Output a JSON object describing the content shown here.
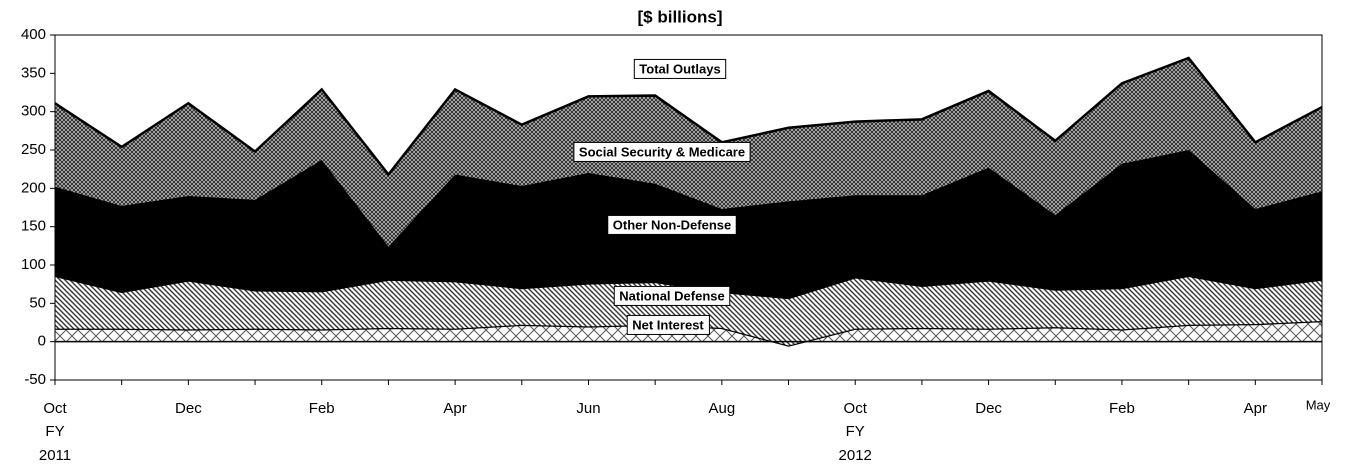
{
  "chart_data": {
    "type": "stacked-area",
    "title": "[$ billions]",
    "categories": [
      "Oct",
      null,
      "Dec",
      null,
      "Feb",
      null,
      "Apr",
      null,
      "Jun",
      null,
      "Aug",
      null,
      "Oct",
      null,
      "Dec",
      null,
      "Feb",
      null,
      "Apr",
      "May"
    ],
    "fiscal_years": [
      [
        "FY",
        "2011"
      ],
      null,
      null,
      null,
      null,
      null,
      null,
      null,
      null,
      null,
      null,
      null,
      [
        "FY",
        "2012"
      ],
      null,
      null,
      null,
      null,
      null,
      null,
      null
    ],
    "series": [
      {
        "name": "Net Interest",
        "pattern": "crosshatch",
        "color": "#555555",
        "values": [
          17,
          17,
          16,
          17,
          16,
          18,
          17,
          22,
          20,
          22,
          18,
          -5,
          17,
          18,
          17,
          19,
          16,
          22,
          23,
          27
        ]
      },
      {
        "name": "National Defense",
        "pattern": "diagonal",
        "color": "#333333",
        "values": [
          69,
          48,
          64,
          50,
          50,
          63,
          62,
          48,
          56,
          56,
          47,
          62,
          67,
          55,
          63,
          49,
          54,
          64,
          47,
          54
        ]
      },
      {
        "name": "Other Non-Defense",
        "pattern": "solid",
        "color": "#000000",
        "values": [
          116,
          112,
          110,
          118,
          171,
          43,
          139,
          133,
          144,
          128,
          108,
          126,
          107,
          118,
          147,
          97,
          162,
          164,
          103,
          115
        ]
      },
      {
        "name": "Social Security & Medicare",
        "pattern": "dense-crosshatch",
        "color": "#222222",
        "values": [
          109,
          77,
          121,
          63,
          92,
          94,
          111,
          80,
          100,
          115,
          87,
          96,
          96,
          99,
          100,
          97,
          105,
          120,
          87,
          110
        ]
      }
    ],
    "annotations": [
      "Total Outlays"
    ],
    "ylim": [
      -50,
      400
    ],
    "yticks": [
      -50,
      0,
      50,
      100,
      150,
      200,
      250,
      300,
      350,
      400
    ],
    "grid": false
  }
}
